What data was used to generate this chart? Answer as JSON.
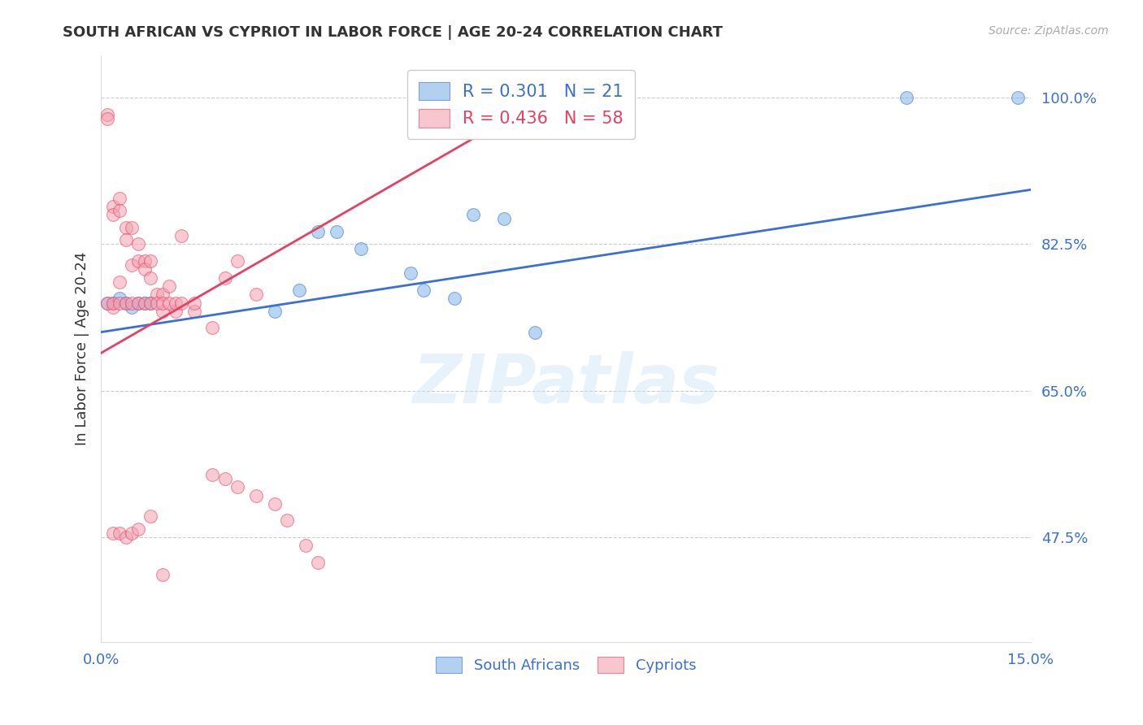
{
  "title": "SOUTH AFRICAN VS CYPRIOT IN LABOR FORCE | AGE 20-24 CORRELATION CHART",
  "source": "Source: ZipAtlas.com",
  "ylabel": "In Labor Force | Age 20-24",
  "xlim": [
    0.0,
    0.15
  ],
  "ylim": [
    0.35,
    1.05
  ],
  "yticks": [
    0.475,
    0.65,
    0.825,
    1.0
  ],
  "ytick_labels": [
    "47.5%",
    "65.0%",
    "82.5%",
    "100.0%"
  ],
  "xticks": [
    0.0,
    0.025,
    0.05,
    0.075,
    0.1,
    0.125,
    0.15
  ],
  "xtick_labels": [
    "0.0%",
    "",
    "",
    "",
    "",
    "",
    "15.0%"
  ],
  "sa_color": "#7fb3e8",
  "cy_color": "#f4a0b0",
  "sa_line_color": "#3a6fd8",
  "cy_line_color": "#e84060",
  "sa_R": "0.301",
  "sa_N": "21",
  "cy_R": "0.436",
  "cy_N": "58",
  "background_color": "#ffffff",
  "watermark_text": "ZIPatlas",
  "sa_x": [
    0.001,
    0.002,
    0.003,
    0.004,
    0.005,
    0.006,
    0.007,
    0.008,
    0.028,
    0.032,
    0.035,
    0.038,
    0.042,
    0.05,
    0.052,
    0.057,
    0.06,
    0.065,
    0.07,
    0.13,
    0.148
  ],
  "sa_y": [
    0.755,
    0.755,
    0.76,
    0.755,
    0.75,
    0.755,
    0.755,
    0.755,
    0.745,
    0.77,
    0.84,
    0.84,
    0.82,
    0.79,
    0.77,
    0.76,
    0.86,
    0.855,
    0.72,
    1.0,
    1.0
  ],
  "cy_x": [
    0.001,
    0.001,
    0.002,
    0.002,
    0.002,
    0.003,
    0.003,
    0.003,
    0.004,
    0.004,
    0.005,
    0.005,
    0.006,
    0.006,
    0.007,
    0.007,
    0.008,
    0.008,
    0.009,
    0.01,
    0.01,
    0.011,
    0.012,
    0.013,
    0.015,
    0.018,
    0.02,
    0.022,
    0.025,
    0.001,
    0.002,
    0.003,
    0.004,
    0.005,
    0.006,
    0.007,
    0.008,
    0.009,
    0.01,
    0.011,
    0.012,
    0.013,
    0.015,
    0.018,
    0.02,
    0.022,
    0.025,
    0.028,
    0.03,
    0.033,
    0.035,
    0.002,
    0.003,
    0.004,
    0.005,
    0.006,
    0.008,
    0.01
  ],
  "cy_y": [
    0.98,
    0.975,
    0.87,
    0.86,
    0.75,
    0.88,
    0.865,
    0.78,
    0.845,
    0.83,
    0.845,
    0.8,
    0.825,
    0.805,
    0.805,
    0.795,
    0.805,
    0.785,
    0.765,
    0.765,
    0.745,
    0.775,
    0.745,
    0.835,
    0.745,
    0.725,
    0.785,
    0.805,
    0.765,
    0.755,
    0.755,
    0.755,
    0.755,
    0.755,
    0.755,
    0.755,
    0.755,
    0.755,
    0.755,
    0.755,
    0.755,
    0.755,
    0.755,
    0.55,
    0.545,
    0.535,
    0.525,
    0.515,
    0.495,
    0.465,
    0.445,
    0.48,
    0.48,
    0.475,
    0.48,
    0.485,
    0.5,
    0.43
  ],
  "sa_trend_x": [
    0.0,
    0.15
  ],
  "sa_trend_y": [
    0.72,
    0.89
  ],
  "cy_trend_x": [
    0.0,
    0.068
  ],
  "cy_trend_y": [
    0.695,
    0.985
  ]
}
